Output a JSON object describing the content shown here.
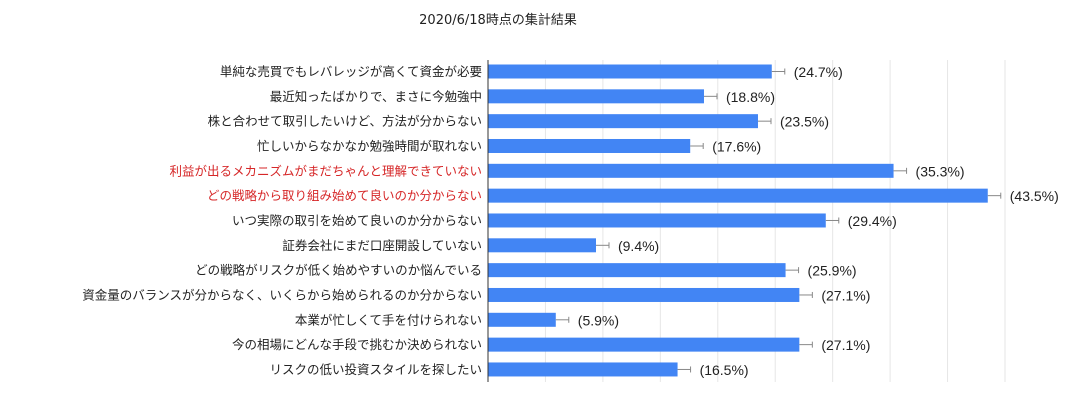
{
  "chart_data": {
    "type": "bar",
    "orientation": "horizontal",
    "title": "2020/6/18時点の集計結果",
    "categories": [
      "単純な売買でもレバレッジが高くて資金が必要",
      "最近知ったばかりで、まさに今勉強中",
      "株と合わせて取引したいけど、方法が分からない",
      "忙しいからなかなか勉強時間が取れない",
      "利益が出るメカニズムがまだちゃんと理解できていない",
      "どの戦略から取り組み始めて良いのか分からない",
      "いつ実際の取引を始めて良いのか分からない",
      "証券会社にまだ口座開設していない",
      "どの戦略がリスクが低く始めやすいのか悩んでいる",
      "資金量のバランスが分からなく、いくらから始められるのか分からない",
      "本業が忙しくて手を付けられない",
      "今の相場にどんな手段で挑むか決められない",
      "リスクの低い投資スタイルを探したい"
    ],
    "values": [
      24.7,
      18.8,
      23.5,
      17.6,
      35.3,
      43.5,
      29.4,
      9.4,
      25.9,
      27.1,
      5.9,
      27.1,
      16.5
    ],
    "value_labels": [
      "(24.7%)",
      "(18.8%)",
      "(23.5%)",
      "(17.6%)",
      "(35.3%)",
      "(43.5%)",
      "(29.4%)",
      "(9.4%)",
      "(25.9%)",
      "(27.1%)",
      "(5.9%)",
      "(27.1%)",
      "(16.5%)"
    ],
    "highlighted": [
      4,
      5
    ],
    "xlim": [
      0,
      45
    ],
    "grid": true,
    "bar_color": "#4285f4",
    "highlight_label_color": "#d62728",
    "label_color": "#222222"
  }
}
